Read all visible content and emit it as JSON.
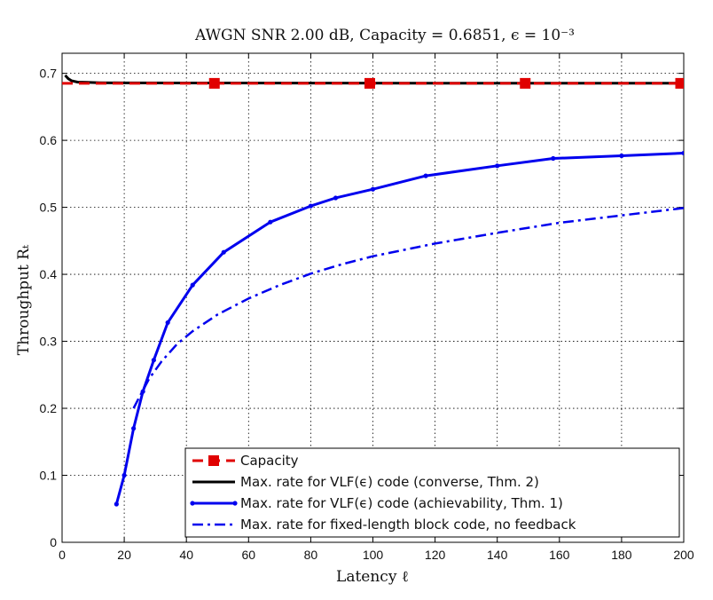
{
  "chart_data": {
    "type": "line",
    "title": "AWGN SNR 2.00 dB, Capacity = 0.6851, ϵ = 10⁻³",
    "xlabel": "Latency ℓ",
    "ylabel": "Throughput Rₜ",
    "xlim": [
      0,
      200
    ],
    "ylim": [
      0,
      0.73
    ],
    "xticks": [
      0,
      20,
      40,
      60,
      80,
      100,
      120,
      140,
      160,
      180,
      200
    ],
    "yticks": [
      0,
      0.1,
      0.2,
      0.3,
      0.4,
      0.5,
      0.6,
      0.7
    ],
    "grid": true,
    "legend_position": "bottom-right",
    "series": [
      {
        "name": "Capacity",
        "color": "#e00000",
        "style": "dashed-square",
        "x": [
          0,
          200
        ],
        "y": [
          0.6851,
          0.6851
        ],
        "markers_x": [
          49,
          99,
          149,
          199
        ]
      },
      {
        "name": "Max. rate for VLF(ϵ) code (converse, Thm. 2)",
        "color": "#000000",
        "style": "solid",
        "x": [
          1,
          2,
          3,
          5,
          8,
          12,
          20,
          40,
          80,
          120,
          160,
          200
        ],
        "y": [
          0.697,
          0.692,
          0.689,
          0.687,
          0.6865,
          0.686,
          0.6858,
          0.6856,
          0.6855,
          0.6854,
          0.6854,
          0.6853
        ]
      },
      {
        "name": "Max. rate for VLF(ϵ) code (achievability, Thm. 1)",
        "color": "#0000ee",
        "style": "solid-dot",
        "x": [
          17.5,
          20,
          23,
          26,
          29.5,
          34,
          42,
          52,
          67,
          80,
          88,
          100,
          117,
          140,
          158,
          180,
          200
        ],
        "y": [
          0.057,
          0.1,
          0.17,
          0.225,
          0.272,
          0.328,
          0.384,
          0.433,
          0.478,
          0.502,
          0.514,
          0.527,
          0.547,
          0.562,
          0.573,
          0.577,
          0.581
        ]
      },
      {
        "name": "Max. rate for fixed-length block code, no feedback",
        "color": "#0000ee",
        "style": "dash-dot",
        "x": [
          23,
          25,
          28,
          32,
          37,
          42,
          50,
          60,
          70,
          80,
          90,
          100,
          120,
          140,
          160,
          180,
          200
        ],
        "y": [
          0.2,
          0.218,
          0.244,
          0.27,
          0.296,
          0.315,
          0.34,
          0.364,
          0.384,
          0.401,
          0.415,
          0.427,
          0.446,
          0.462,
          0.477,
          0.488,
          0.499
        ]
      }
    ]
  }
}
